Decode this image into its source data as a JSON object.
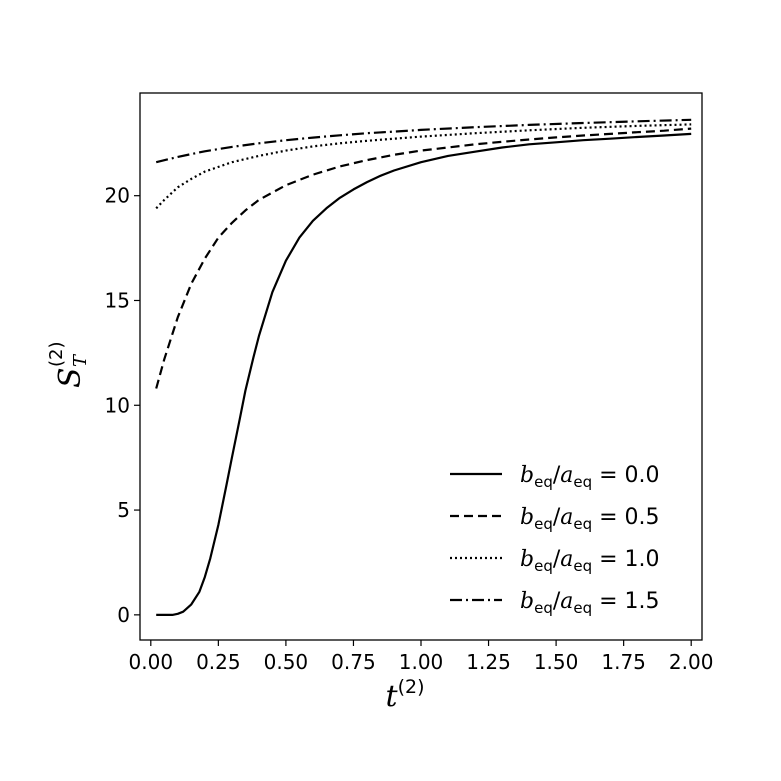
{
  "chart_data": {
    "type": "line",
    "title": "",
    "xlabel": "t",
    "xlabel_sup": "(2)",
    "ylabel": "S",
    "ylabel_sub": "T",
    "ylabel_sup": "(2)",
    "xlim": [
      -0.04,
      2.04
    ],
    "ylim": [
      -1.2,
      24.9
    ],
    "xticks": [
      0.0,
      0.25,
      0.5,
      0.75,
      1.0,
      1.25,
      1.5,
      1.75,
      2.0
    ],
    "xtick_labels": [
      "0.00",
      "0.25",
      "0.50",
      "0.75",
      "1.00",
      "1.25",
      "1.50",
      "1.75",
      "2.00"
    ],
    "yticks": [
      0,
      5,
      10,
      15,
      20
    ],
    "ytick_labels": [
      "0",
      "5",
      "10",
      "15",
      "20"
    ],
    "grid": false,
    "legend_position": "lower-right",
    "series": [
      {
        "name": "b_eq/a_eq = 0.0",
        "label_b": "b",
        "label_a": "a",
        "label_sub": "eq",
        "label_value": "0.0",
        "dash": "",
        "x": [
          0.02,
          0.05,
          0.08,
          0.1,
          0.12,
          0.15,
          0.18,
          0.2,
          0.22,
          0.25,
          0.28,
          0.3,
          0.33,
          0.35,
          0.38,
          0.4,
          0.45,
          0.5,
          0.55,
          0.6,
          0.65,
          0.7,
          0.75,
          0.8,
          0.85,
          0.9,
          1.0,
          1.1,
          1.2,
          1.3,
          1.4,
          1.5,
          1.6,
          1.7,
          1.8,
          1.9,
          2.0
        ],
        "values": [
          0.0,
          0.0,
          0.0,
          0.05,
          0.15,
          0.5,
          1.1,
          1.8,
          2.7,
          4.3,
          6.2,
          7.5,
          9.4,
          10.7,
          12.3,
          13.3,
          15.4,
          16.9,
          18.0,
          18.8,
          19.4,
          19.9,
          20.3,
          20.65,
          20.95,
          21.2,
          21.6,
          21.9,
          22.1,
          22.3,
          22.45,
          22.55,
          22.65,
          22.72,
          22.8,
          22.87,
          22.95
        ]
      },
      {
        "name": "b_eq/a_eq = 0.5",
        "label_b": "b",
        "label_a": "a",
        "label_sub": "eq",
        "label_value": "0.5",
        "dash": "9,5",
        "x": [
          0.02,
          0.05,
          0.08,
          0.1,
          0.15,
          0.2,
          0.25,
          0.3,
          0.35,
          0.4,
          0.5,
          0.6,
          0.7,
          0.8,
          0.9,
          1.0,
          1.1,
          1.2,
          1.3,
          1.4,
          1.5,
          1.6,
          1.7,
          1.8,
          1.9,
          2.0
        ],
        "values": [
          10.8,
          12.2,
          13.4,
          14.2,
          15.8,
          17.0,
          18.0,
          18.7,
          19.3,
          19.8,
          20.5,
          21.0,
          21.4,
          21.7,
          21.95,
          22.15,
          22.3,
          22.45,
          22.57,
          22.68,
          22.78,
          22.87,
          22.95,
          23.03,
          23.1,
          23.2
        ]
      },
      {
        "name": "b_eq/a_eq = 1.0",
        "label_b": "b",
        "label_a": "a",
        "label_sub": "eq",
        "label_value": "1.0",
        "dash": "2,3",
        "x": [
          0.02,
          0.05,
          0.1,
          0.15,
          0.2,
          0.3,
          0.4,
          0.5,
          0.6,
          0.7,
          0.8,
          0.9,
          1.0,
          1.2,
          1.4,
          1.6,
          1.8,
          2.0
        ],
        "values": [
          19.4,
          19.8,
          20.4,
          20.8,
          21.15,
          21.6,
          21.9,
          22.15,
          22.35,
          22.5,
          22.62,
          22.72,
          22.82,
          22.98,
          23.12,
          23.24,
          23.33,
          23.4
        ]
      },
      {
        "name": "b_eq/a_eq = 1.5",
        "label_b": "b",
        "label_a": "a",
        "label_sub": "eq",
        "label_value": "1.5",
        "dash": "12,4,2,4",
        "x": [
          0.02,
          0.1,
          0.2,
          0.3,
          0.4,
          0.5,
          0.6,
          0.7,
          0.8,
          0.9,
          1.0,
          1.2,
          1.4,
          1.6,
          1.8,
          2.0
        ],
        "values": [
          21.6,
          21.85,
          22.12,
          22.33,
          22.5,
          22.65,
          22.77,
          22.88,
          22.98,
          23.06,
          23.14,
          23.27,
          23.38,
          23.47,
          23.55,
          23.62
        ]
      }
    ]
  }
}
